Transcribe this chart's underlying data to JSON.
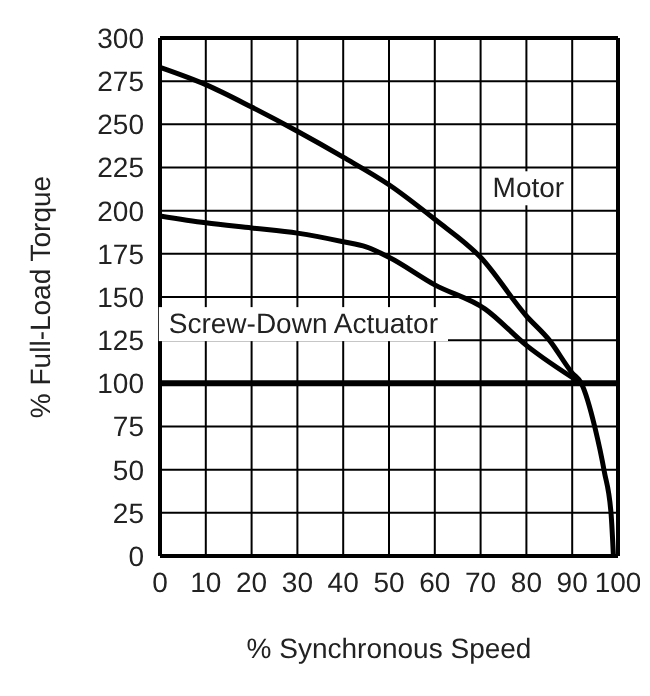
{
  "chart_data": {
    "type": "line",
    "xlabel": "% Synchronous Speed",
    "ylabel": "% Full-Load Torque",
    "xlim": [
      0,
      100
    ],
    "xticks": [
      0,
      10,
      20,
      30,
      40,
      50,
      60,
      70,
      80,
      90,
      100
    ],
    "ylim": [
      0,
      300
    ],
    "yticks": [
      0,
      25,
      50,
      75,
      100,
      125,
      150,
      175,
      200,
      225,
      250,
      275,
      300
    ],
    "grid": true,
    "legend": false,
    "marker": "none",
    "line_style": "solid",
    "series": [
      {
        "name": "Motor",
        "color": "#000000",
        "x": [
          0,
          10,
          20,
          30,
          40,
          50,
          60,
          70,
          80,
          85,
          90,
          92,
          95,
          97,
          98.5,
          99
        ],
        "values": [
          283,
          273,
          260,
          246,
          231,
          215,
          195,
          173,
          139,
          125,
          106,
          100,
          74,
          49,
          24,
          0
        ]
      },
      {
        "name": "Screw-Down Actuator",
        "color": "#000000",
        "x": [
          0,
          10,
          20,
          30,
          40,
          45,
          50,
          60,
          71,
          80,
          92
        ],
        "values": [
          197,
          193,
          190,
          187,
          182,
          179,
          173,
          157,
          143,
          122,
          100
        ]
      }
    ],
    "ref_lines": [
      {
        "axis": "y",
        "value": 100,
        "color": "#000000"
      }
    ]
  }
}
